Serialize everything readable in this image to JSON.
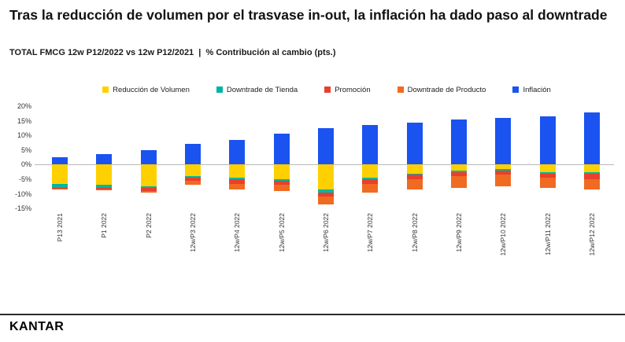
{
  "slide": {
    "title": "Tras la reducción de volumen por el trasvase in-out, la inflación ha dado paso al downtrade",
    "subtitle": "TOTAL FMCG 12w P12/2022 vs 12w P12/2021  |  % Contribución al cambio (pts.)",
    "logo": "KANTAR"
  },
  "chart_data": {
    "type": "bar",
    "stacked": true,
    "title": "",
    "xlabel": "",
    "ylabel": "% Contribución al cambio (pts.)",
    "categories": [
      "P13 2021",
      "P1 2022",
      "P2 2022",
      "12w/P3 2022",
      "12w/P4 2022",
      "12w/P5 2022",
      "12w/P6 2022",
      "12w/P7 2022",
      "12w/P8 2022",
      "12w/P9 2022",
      "12w/P10 2022",
      "12w/P11 2022",
      "12w/P12 2022"
    ],
    "series": [
      {
        "name": "Reducción de Volumen",
        "color": "#FFD000",
        "values": [
          -6.5,
          -7.0,
          -7.5,
          -4.0,
          -4.5,
          -5.0,
          -8.5,
          -4.5,
          -3.0,
          -2.0,
          -1.5,
          -2.5,
          -2.5
        ]
      },
      {
        "name": "Downtrade de Tienda",
        "color": "#00B5A0",
        "values": [
          -1.5,
          -1.0,
          -0.5,
          -0.5,
          -0.5,
          -0.5,
          -1.0,
          -0.5,
          -0.5,
          -0.5,
          -0.5,
          -0.5,
          -0.5
        ]
      },
      {
        "name": "Promoción",
        "color": "#E8402D",
        "values": [
          -0.3,
          -0.4,
          -1.0,
          -1.0,
          -1.5,
          -1.5,
          -1.5,
          -1.5,
          -1.5,
          -1.5,
          -1.5,
          -1.5,
          -2.0
        ]
      },
      {
        "name": "Downtrade de Producto",
        "color": "#F06B21",
        "values": [
          -0.2,
          -0.3,
          -0.5,
          -1.5,
          -2.0,
          -2.0,
          -2.5,
          -3.0,
          -3.5,
          -4.0,
          -4.0,
          -3.5,
          -3.5
        ]
      },
      {
        "name": "Inflación",
        "color": "#1A53F0",
        "values": [
          2.5,
          3.5,
          5.0,
          7.0,
          8.5,
          10.5,
          12.5,
          13.5,
          14.5,
          15.5,
          16.0,
          16.5,
          18.0
        ]
      }
    ],
    "ylim": [
      -15,
      20
    ],
    "ytick_step": 5,
    "ytick_labels": [
      "20%",
      "15%",
      "10%",
      "5%",
      "0%",
      "-5%",
      "-10%",
      "-15%"
    ],
    "legend_position": "top",
    "grid": false,
    "x_label_rotation": 90,
    "zero_line_color": "#b9b9b9"
  }
}
